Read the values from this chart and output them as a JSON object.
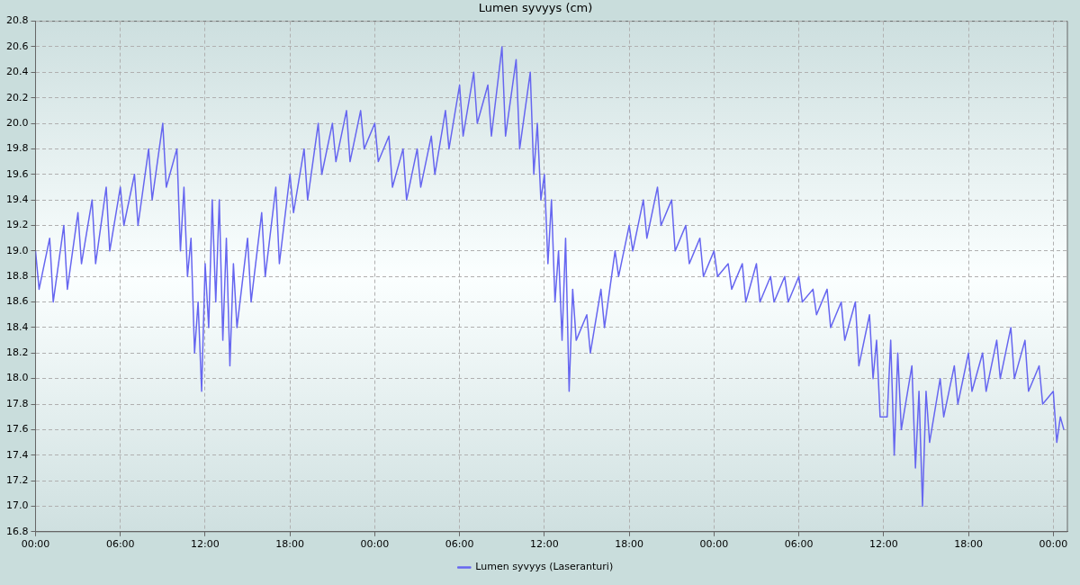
{
  "chart_data": {
    "type": "line",
    "title": "Lumen syvyys (cm)",
    "x": [
      "2000-01-01T00:00",
      "2000-01-01T00:15",
      "2000-01-01T01:00",
      "2000-01-01T01:15",
      "2000-01-01T02:00",
      "2000-01-01T02:15",
      "2000-01-01T03:00",
      "2000-01-01T03:15",
      "2000-01-01T04:00",
      "2000-01-01T04:15",
      "2000-01-01T05:00",
      "2000-01-01T05:15",
      "2000-01-01T06:00",
      "2000-01-01T06:15",
      "2000-01-01T07:00",
      "2000-01-01T07:15",
      "2000-01-01T08:00",
      "2000-01-01T08:15",
      "2000-01-01T09:00",
      "2000-01-01T09:15",
      "2000-01-01T10:00",
      "2000-01-01T10:15",
      "2000-01-01T10:30",
      "2000-01-01T10:45",
      "2000-01-01T11:00",
      "2000-01-01T11:15",
      "2000-01-01T11:30",
      "2000-01-01T11:45",
      "2000-01-01T12:00",
      "2000-01-01T12:15",
      "2000-01-01T12:30",
      "2000-01-01T12:45",
      "2000-01-01T13:00",
      "2000-01-01T13:15",
      "2000-01-01T13:30",
      "2000-01-01T13:45",
      "2000-01-01T14:00",
      "2000-01-01T14:15",
      "2000-01-01T15:00",
      "2000-01-01T15:15",
      "2000-01-01T16:00",
      "2000-01-01T16:15",
      "2000-01-01T17:00",
      "2000-01-01T17:15",
      "2000-01-01T18:00",
      "2000-01-01T18:15",
      "2000-01-01T19:00",
      "2000-01-01T19:15",
      "2000-01-01T20:00",
      "2000-01-01T20:15",
      "2000-01-01T21:00",
      "2000-01-01T21:15",
      "2000-01-01T22:00",
      "2000-01-01T22:15",
      "2000-01-01T23:00",
      "2000-01-01T23:15",
      "2000-01-02T00:00",
      "2000-01-02T00:15",
      "2000-01-02T01:00",
      "2000-01-02T01:15",
      "2000-01-02T02:00",
      "2000-01-02T02:15",
      "2000-01-02T03:00",
      "2000-01-02T03:15",
      "2000-01-02T04:00",
      "2000-01-02T04:15",
      "2000-01-02T05:00",
      "2000-01-02T05:15",
      "2000-01-02T06:00",
      "2000-01-02T06:15",
      "2000-01-02T07:00",
      "2000-01-02T07:15",
      "2000-01-02T08:00",
      "2000-01-02T08:15",
      "2000-01-02T09:00",
      "2000-01-02T09:15",
      "2000-01-02T10:00",
      "2000-01-02T10:15",
      "2000-01-02T11:00",
      "2000-01-02T11:15",
      "2000-01-02T11:30",
      "2000-01-02T11:45",
      "2000-01-02T12:00",
      "2000-01-02T12:15",
      "2000-01-02T12:30",
      "2000-01-02T12:45",
      "2000-01-02T13:00",
      "2000-01-02T13:15",
      "2000-01-02T13:30",
      "2000-01-02T13:45",
      "2000-01-02T14:00",
      "2000-01-02T14:15",
      "2000-01-02T15:00",
      "2000-01-02T15:15",
      "2000-01-02T16:00",
      "2000-01-02T16:15",
      "2000-01-02T17:00",
      "2000-01-02T17:15",
      "2000-01-02T18:00",
      "2000-01-02T18:15",
      "2000-01-02T19:00",
      "2000-01-02T19:15",
      "2000-01-02T20:00",
      "2000-01-02T20:15",
      "2000-01-02T21:00",
      "2000-01-02T21:15",
      "2000-01-02T22:00",
      "2000-01-02T22:15",
      "2000-01-02T23:00",
      "2000-01-02T23:15",
      "2000-01-03T00:00",
      "2000-01-03T00:15",
      "2000-01-03T01:00",
      "2000-01-03T01:15",
      "2000-01-03T02:00",
      "2000-01-03T02:15",
      "2000-01-03T03:00",
      "2000-01-03T03:15",
      "2000-01-03T04:00",
      "2000-01-03T04:15",
      "2000-01-03T05:00",
      "2000-01-03T05:15",
      "2000-01-03T06:00",
      "2000-01-03T06:15",
      "2000-01-03T07:00",
      "2000-01-03T07:15",
      "2000-01-03T08:00",
      "2000-01-03T08:15",
      "2000-01-03T09:00",
      "2000-01-03T09:15",
      "2000-01-03T10:00",
      "2000-01-03T10:15",
      "2000-01-03T11:00",
      "2000-01-03T11:15",
      "2000-01-03T11:30",
      "2000-01-03T11:45",
      "2000-01-03T12:00",
      "2000-01-03T12:15",
      "2000-01-03T12:30",
      "2000-01-03T12:45",
      "2000-01-03T13:00",
      "2000-01-03T13:15",
      "2000-01-03T14:00",
      "2000-01-03T14:15",
      "2000-01-03T14:30",
      "2000-01-03T14:45",
      "2000-01-03T15:00",
      "2000-01-03T15:15",
      "2000-01-03T16:00",
      "2000-01-03T16:15",
      "2000-01-03T17:00",
      "2000-01-03T17:15",
      "2000-01-03T18:00",
      "2000-01-03T18:15",
      "2000-01-03T19:00",
      "2000-01-03T19:15",
      "2000-01-03T20:00",
      "2000-01-03T20:15",
      "2000-01-03T21:00",
      "2000-01-03T21:15",
      "2000-01-03T22:00",
      "2000-01-03T22:15",
      "2000-01-03T23:00",
      "2000-01-03T23:15",
      "2000-01-04T00:00",
      "2000-01-04T00:15",
      "2000-01-04T00:30",
      "2000-01-04T00:45"
    ],
    "series": [
      {
        "name": "Lumen syvyys (Laseranturi)",
        "color": "#6666f0",
        "values": [
          19.0,
          18.7,
          19.1,
          18.6,
          19.2,
          18.7,
          19.3,
          18.9,
          19.4,
          18.9,
          19.5,
          19.0,
          19.5,
          19.2,
          19.6,
          19.2,
          19.8,
          19.4,
          20.0,
          19.5,
          19.8,
          19.0,
          19.5,
          18.8,
          19.1,
          18.2,
          18.6,
          17.9,
          18.9,
          18.4,
          19.4,
          18.6,
          19.4,
          18.3,
          19.1,
          18.1,
          18.9,
          18.4,
          19.1,
          18.6,
          19.3,
          18.8,
          19.5,
          18.9,
          19.6,
          19.3,
          19.8,
          19.4,
          20.0,
          19.6,
          20.0,
          19.7,
          20.1,
          19.7,
          20.1,
          19.8,
          20.0,
          19.7,
          19.9,
          19.5,
          19.8,
          19.4,
          19.8,
          19.5,
          19.9,
          19.6,
          20.1,
          19.8,
          20.3,
          19.9,
          20.4,
          20.0,
          20.3,
          19.9,
          20.6,
          19.9,
          20.5,
          19.8,
          20.4,
          19.6,
          20.0,
          19.4,
          19.6,
          18.9,
          19.4,
          18.6,
          19.0,
          18.3,
          19.1,
          17.9,
          18.7,
          18.3,
          18.5,
          18.2,
          18.7,
          18.4,
          19.0,
          18.8,
          19.2,
          19.0,
          19.4,
          19.1,
          19.5,
          19.2,
          19.4,
          19.0,
          19.2,
          18.9,
          19.1,
          18.8,
          19.0,
          18.8,
          18.9,
          18.7,
          18.9,
          18.6,
          18.9,
          18.6,
          18.8,
          18.6,
          18.8,
          18.6,
          18.8,
          18.6,
          18.7,
          18.5,
          18.7,
          18.4,
          18.6,
          18.3,
          18.6,
          18.1,
          18.5,
          18.0,
          18.3,
          17.7,
          17.7,
          17.7,
          18.3,
          17.4,
          18.2,
          17.6,
          18.1,
          17.3,
          17.9,
          17.0,
          17.9,
          17.5,
          18.0,
          17.7,
          18.1,
          17.8,
          18.2,
          17.9,
          18.2,
          17.9,
          18.3,
          18.0,
          18.4,
          18.0,
          18.3,
          17.9,
          18.1,
          17.8,
          17.9,
          17.5,
          17.7,
          17.6
        ]
      }
    ],
    "xlim": [
      "2000-01-01T00:00",
      "2000-01-04T01:00"
    ],
    "xticks": [
      {
        "value": "2000-01-01T00:00",
        "label": "00:00"
      },
      {
        "value": "2000-01-01T06:00",
        "label": "06:00"
      },
      {
        "value": "2000-01-01T12:00",
        "label": "12:00"
      },
      {
        "value": "2000-01-01T18:00",
        "label": "18:00"
      },
      {
        "value": "2000-01-02T00:00",
        "label": "00:00"
      },
      {
        "value": "2000-01-02T06:00",
        "label": "06:00"
      },
      {
        "value": "2000-01-02T12:00",
        "label": "12:00"
      },
      {
        "value": "2000-01-02T18:00",
        "label": "18:00"
      },
      {
        "value": "2000-01-03T00:00",
        "label": "00:00"
      },
      {
        "value": "2000-01-03T06:00",
        "label": "06:00"
      },
      {
        "value": "2000-01-03T12:00",
        "label": "12:00"
      },
      {
        "value": "2000-01-03T18:00",
        "label": "18:00"
      },
      {
        "value": "2000-01-04T00:00",
        "label": "00:00"
      }
    ],
    "ylim": [
      16.8,
      20.8
    ],
    "yticks": [
      {
        "value": 16.8,
        "label": "16.8"
      },
      {
        "value": 17,
        "label": "17.0"
      },
      {
        "value": 17.2,
        "label": "17.2"
      },
      {
        "value": 17.4,
        "label": "17.4"
      },
      {
        "value": 17.6,
        "label": "17.6"
      },
      {
        "value": 17.8,
        "label": "17.8"
      },
      {
        "value": 18,
        "label": "18.0"
      },
      {
        "value": 18.2,
        "label": "18.2"
      },
      {
        "value": 18.4,
        "label": "18.4"
      },
      {
        "value": 18.6,
        "label": "18.6"
      },
      {
        "value": 18.8,
        "label": "18.8"
      },
      {
        "value": 19,
        "label": "19.0"
      },
      {
        "value": 19.2,
        "label": "19.2"
      },
      {
        "value": 19.4,
        "label": "19.4"
      },
      {
        "value": 19.6,
        "label": "19.6"
      },
      {
        "value": 19.8,
        "label": "19.8"
      },
      {
        "value": 20,
        "label": "20.0"
      },
      {
        "value": 20.2,
        "label": "20.2"
      },
      {
        "value": 20.4,
        "label": "20.4"
      },
      {
        "value": 20.6,
        "label": "20.6"
      },
      {
        "value": 20.8,
        "label": "20.8"
      }
    ],
    "grid": true,
    "legend": "bottom",
    "marker": "none",
    "line_style": "solid"
  }
}
